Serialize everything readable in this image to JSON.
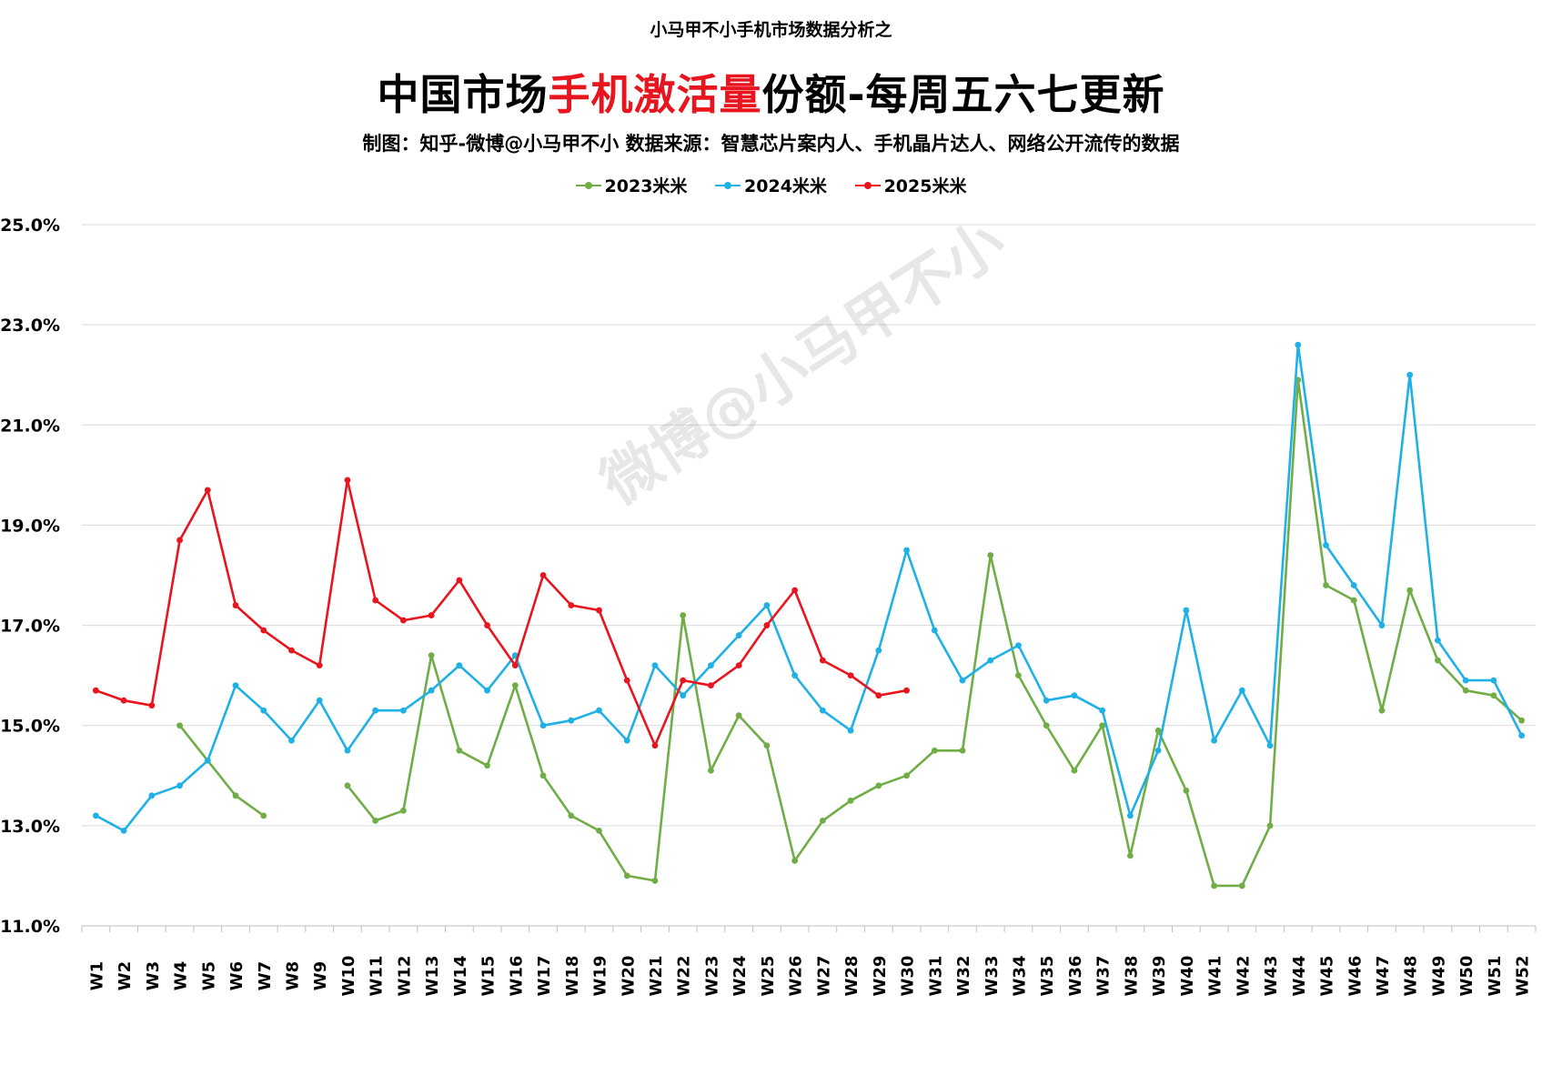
{
  "header": {
    "series_title": "小马甲不小手机市场数据分析之",
    "title_prefix": "中国市场",
    "title_highlight": "手机激活量",
    "title_suffix": "份额-每周五六七更新",
    "credit": "制图：知乎-微博@小马甲不小  数据来源：智慧芯片案内人、手机晶片达人、网络公开流传的数据"
  },
  "watermark": "微博@小马甲不小",
  "colors": {
    "s2023": "#70ad47",
    "s2024": "#1fb1e6",
    "s2025": "#e8141e",
    "title_accent": "#e8141e",
    "grid": "#d9d9d9"
  },
  "chart_data": {
    "type": "line",
    "title": "中国市场手机激活量份额-每周五六七更新",
    "xlabel": "",
    "ylabel": "",
    "ylim": [
      11.0,
      25.0
    ],
    "y_ticks": [
      "11.0%",
      "13.0%",
      "15.0%",
      "17.0%",
      "19.0%",
      "21.0%",
      "23.0%",
      "25.0%"
    ],
    "grid": true,
    "legend_position": "top-center",
    "categories": [
      "W1",
      "W2",
      "W3",
      "W4",
      "W5",
      "W6",
      "W7",
      "W8",
      "W9",
      "W10",
      "W11",
      "W12",
      "W13",
      "W14",
      "W15",
      "W16",
      "W17",
      "W18",
      "W19",
      "W20",
      "W21",
      "W22",
      "W23",
      "W24",
      "W25",
      "W26",
      "W27",
      "W28",
      "W29",
      "W30",
      "W31",
      "W32",
      "W33",
      "W34",
      "W35",
      "W36",
      "W37",
      "W38",
      "W39",
      "W40",
      "W41",
      "W42",
      "W43",
      "W44",
      "W45",
      "W46",
      "W47",
      "W48",
      "W49",
      "W50",
      "W51",
      "W52"
    ],
    "series": [
      {
        "name": "2023米米",
        "values": [
          null,
          null,
          null,
          15.0,
          14.3,
          13.6,
          13.2,
          null,
          null,
          13.8,
          13.1,
          13.3,
          16.4,
          14.5,
          14.2,
          15.8,
          14.0,
          13.2,
          12.9,
          12.0,
          11.9,
          17.2,
          14.1,
          15.2,
          14.6,
          12.3,
          13.1,
          13.5,
          13.8,
          14.0,
          14.5,
          14.5,
          18.4,
          16.0,
          15.0,
          14.1,
          15.0,
          12.4,
          14.9,
          13.7,
          11.8,
          11.8,
          13.0,
          21.9,
          17.8,
          17.5,
          15.3,
          17.7,
          16.3,
          15.7,
          15.6,
          15.1
        ]
      },
      {
        "name": "2024米米",
        "values": [
          13.2,
          12.9,
          13.6,
          13.8,
          14.3,
          15.8,
          15.3,
          14.7,
          15.5,
          14.5,
          15.3,
          15.3,
          15.7,
          16.2,
          15.7,
          16.4,
          15.0,
          15.1,
          15.3,
          14.7,
          16.2,
          15.6,
          16.2,
          16.8,
          17.4,
          16.0,
          15.3,
          14.9,
          16.5,
          18.5,
          16.9,
          15.9,
          16.3,
          16.6,
          15.5,
          15.6,
          15.3,
          13.2,
          14.5,
          17.3,
          14.7,
          15.7,
          14.6,
          22.6,
          18.6,
          17.8,
          17.0,
          22.0,
          16.7,
          15.9,
          15.9,
          14.8
        ]
      },
      {
        "name": "2025米米",
        "values": [
          15.7,
          15.5,
          15.4,
          18.7,
          19.7,
          17.4,
          16.9,
          16.5,
          16.2,
          19.9,
          17.5,
          17.1,
          17.2,
          17.9,
          17.0,
          16.2,
          18.0,
          17.4,
          17.3,
          15.9,
          14.6,
          15.9,
          15.8,
          16.2,
          17.0,
          17.7,
          16.3,
          16.0,
          15.6,
          15.7,
          null,
          null,
          null,
          null,
          null,
          null,
          null,
          null,
          null,
          null,
          null,
          null,
          null,
          null,
          null,
          null,
          null,
          null,
          null,
          null,
          null,
          null
        ]
      }
    ]
  }
}
